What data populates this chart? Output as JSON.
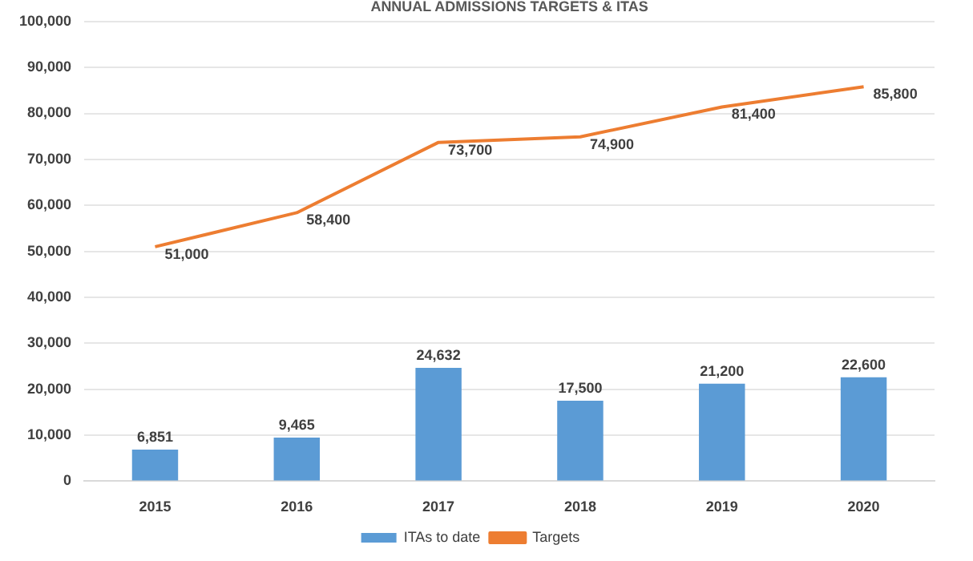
{
  "chart_data": {
    "type": "bar",
    "title": "ANNUAL ADMISSIONS TARGETS & ITAS",
    "categories": [
      "2015",
      "2016",
      "2017",
      "2018",
      "2019",
      "2020"
    ],
    "series": [
      {
        "name": "ITAs to date",
        "color": "#5b9bd5",
        "values": [
          6851,
          9465,
          24632,
          17500,
          21200,
          22600
        ],
        "value_labels": [
          "6,851",
          "9,465",
          "24,632",
          "17,500",
          "21,200",
          "22,600"
        ]
      },
      {
        "name": "Targets",
        "type": "line",
        "color": "#ed7d31",
        "values": [
          51000,
          58400,
          73700,
          74900,
          81400,
          85800
        ],
        "value_labels": [
          "51,000",
          "58,400",
          "73,700",
          "74,900",
          "81,400",
          "85,800"
        ],
        "marker": "none"
      }
    ],
    "ylim": [
      0,
      100000
    ],
    "yticks": [
      0,
      {
        "value": 10000,
        "label": "10,000"
      },
      {
        "value": 20000,
        "label": "20,000"
      },
      {
        "value": 30000,
        "label": "30,000"
      },
      {
        "value": 40000,
        "label": "40,000"
      },
      {
        "value": 50000,
        "label": "50,000"
      },
      {
        "value": 60000,
        "label": "60,000"
      },
      {
        "value": 70000,
        "label": "70,000"
      },
      {
        "value": 80000,
        "label": "80,000"
      },
      {
        "value": 90000,
        "label": "90,000"
      },
      {
        "value": 100000,
        "label": "100,000"
      }
    ],
    "grid": "y",
    "legend": "bottom"
  }
}
